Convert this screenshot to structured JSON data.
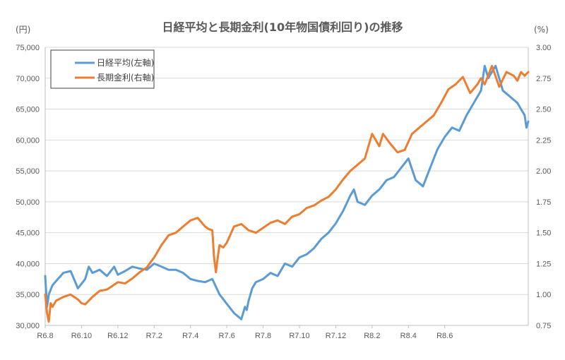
{
  "chart_data": {
    "type": "line",
    "title": "日経平均と長期金利(10年物国債利回り)の推移",
    "left_unit": "(円)",
    "right_unit": "(%)",
    "x_tick_labels": [
      "R6.8",
      "R6.10",
      "R6.12",
      "R7.2",
      "R7.4",
      "R7.6",
      "R7.8",
      "R7.10",
      "R7.12",
      "R8.2",
      "R8.4",
      "R8.6"
    ],
    "x_range_months": [
      0,
      13.3
    ],
    "y_left": {
      "range": [
        30000,
        75000
      ],
      "ticks": [
        30000,
        35000,
        40000,
        45000,
        50000,
        55000,
        60000,
        65000,
        70000,
        75000
      ],
      "tick_labels": [
        "30,000",
        "35,000",
        "40,000",
        "45,000",
        "50,000",
        "55,000",
        "60,000",
        "65,000",
        "70,000",
        "75,000"
      ]
    },
    "y_right": {
      "range": [
        0.75,
        3.0
      ],
      "ticks": [
        0.75,
        1.0,
        1.25,
        1.5,
        1.75,
        2.0,
        2.25,
        2.5,
        2.75,
        3.0
      ],
      "tick_labels": [
        "0.75",
        "1.00",
        "1.25",
        "1.50",
        "1.75",
        "2.00",
        "2.25",
        "2.50",
        "2.75",
        "3.00"
      ]
    },
    "grid": "horizontal",
    "legend_position": "top-left",
    "series": [
      {
        "name": "日経平均(左軸)",
        "axis": "left",
        "color": "#5b9bd5",
        "x": [
          0.0,
          0.05,
          0.1,
          0.2,
          0.35,
          0.5,
          0.7,
          0.9,
          1.1,
          1.2,
          1.3,
          1.5,
          1.7,
          1.9,
          2.0,
          2.2,
          2.4,
          2.6,
          2.8,
          3.0,
          3.2,
          3.4,
          3.6,
          3.8,
          4.0,
          4.2,
          4.4,
          4.6,
          4.8,
          5.0,
          5.2,
          5.4,
          5.5,
          5.55,
          5.6,
          5.65,
          5.7,
          5.8,
          6.0,
          6.2,
          6.4,
          6.6,
          6.8,
          7.0,
          7.2,
          7.4,
          7.6,
          7.8,
          8.0,
          8.2,
          8.4,
          8.5,
          8.6,
          8.8,
          9.0,
          9.2,
          9.4,
          9.6,
          9.8,
          10.0,
          10.2,
          10.4,
          10.6,
          10.8,
          11.0,
          11.2,
          11.4,
          11.6,
          11.8,
          12.0,
          12.1,
          12.2,
          12.4,
          12.6,
          12.8,
          13.0,
          13.1,
          13.2,
          13.25,
          13.3
        ],
        "values": [
          38000,
          33000,
          35000,
          36500,
          37500,
          38500,
          38800,
          36000,
          37500,
          39500,
          38500,
          39000,
          38000,
          39500,
          38200,
          38800,
          39500,
          39200,
          39000,
          40000,
          39500,
          39000,
          39000,
          38500,
          37500,
          37200,
          37000,
          37500,
          35000,
          33500,
          32000,
          31000,
          33000,
          32500,
          34000,
          35000,
          36000,
          37000,
          37500,
          38500,
          38000,
          40000,
          39500,
          41000,
          41500,
          42500,
          44000,
          45000,
          46500,
          48500,
          51000,
          52000,
          50000,
          49500,
          51000,
          52000,
          53500,
          54000,
          55500,
          57000,
          53500,
          52500,
          55500,
          58500,
          60500,
          62000,
          61500,
          64000,
          66000,
          68000,
          72000,
          70000,
          72000,
          68000,
          67000,
          66000,
          65000,
          64000,
          62000,
          63000
        ]
      },
      {
        "name": "長期金利(右軸)",
        "axis": "right",
        "color": "#ed7d31",
        "x": [
          0.0,
          0.05,
          0.1,
          0.15,
          0.2,
          0.3,
          0.5,
          0.7,
          0.9,
          1.0,
          1.1,
          1.3,
          1.5,
          1.7,
          1.9,
          2.0,
          2.2,
          2.4,
          2.6,
          2.8,
          3.0,
          3.2,
          3.4,
          3.6,
          3.8,
          4.0,
          4.2,
          4.4,
          4.5,
          4.6,
          4.65,
          4.7,
          4.75,
          4.8,
          4.9,
          5.0,
          5.2,
          5.4,
          5.6,
          5.8,
          6.0,
          6.2,
          6.4,
          6.6,
          6.8,
          7.0,
          7.2,
          7.4,
          7.6,
          7.8,
          8.0,
          8.2,
          8.4,
          8.6,
          8.8,
          9.0,
          9.2,
          9.3,
          9.5,
          9.7,
          9.9,
          10.1,
          10.3,
          10.5,
          10.7,
          10.9,
          11.1,
          11.3,
          11.5,
          11.7,
          11.9,
          12.0,
          12.1,
          12.3,
          12.5,
          12.7,
          12.9,
          13.0,
          13.1,
          13.2,
          13.3
        ],
        "values": [
          1.0,
          0.85,
          0.78,
          0.93,
          0.9,
          0.95,
          0.98,
          1.0,
          0.96,
          0.93,
          0.92,
          0.98,
          1.03,
          1.04,
          1.08,
          1.1,
          1.09,
          1.13,
          1.18,
          1.22,
          1.3,
          1.4,
          1.48,
          1.5,
          1.55,
          1.6,
          1.62,
          1.55,
          1.53,
          1.52,
          1.3,
          1.18,
          1.3,
          1.4,
          1.38,
          1.42,
          1.55,
          1.57,
          1.52,
          1.5,
          1.54,
          1.58,
          1.6,
          1.57,
          1.63,
          1.65,
          1.7,
          1.72,
          1.76,
          1.79,
          1.85,
          1.93,
          2.0,
          2.05,
          2.1,
          2.3,
          2.2,
          2.3,
          2.22,
          2.15,
          2.17,
          2.3,
          2.35,
          2.4,
          2.45,
          2.55,
          2.66,
          2.7,
          2.76,
          2.63,
          2.7,
          2.75,
          2.7,
          2.85,
          2.68,
          2.8,
          2.77,
          2.73,
          2.8,
          2.77,
          2.8
        ]
      }
    ]
  }
}
